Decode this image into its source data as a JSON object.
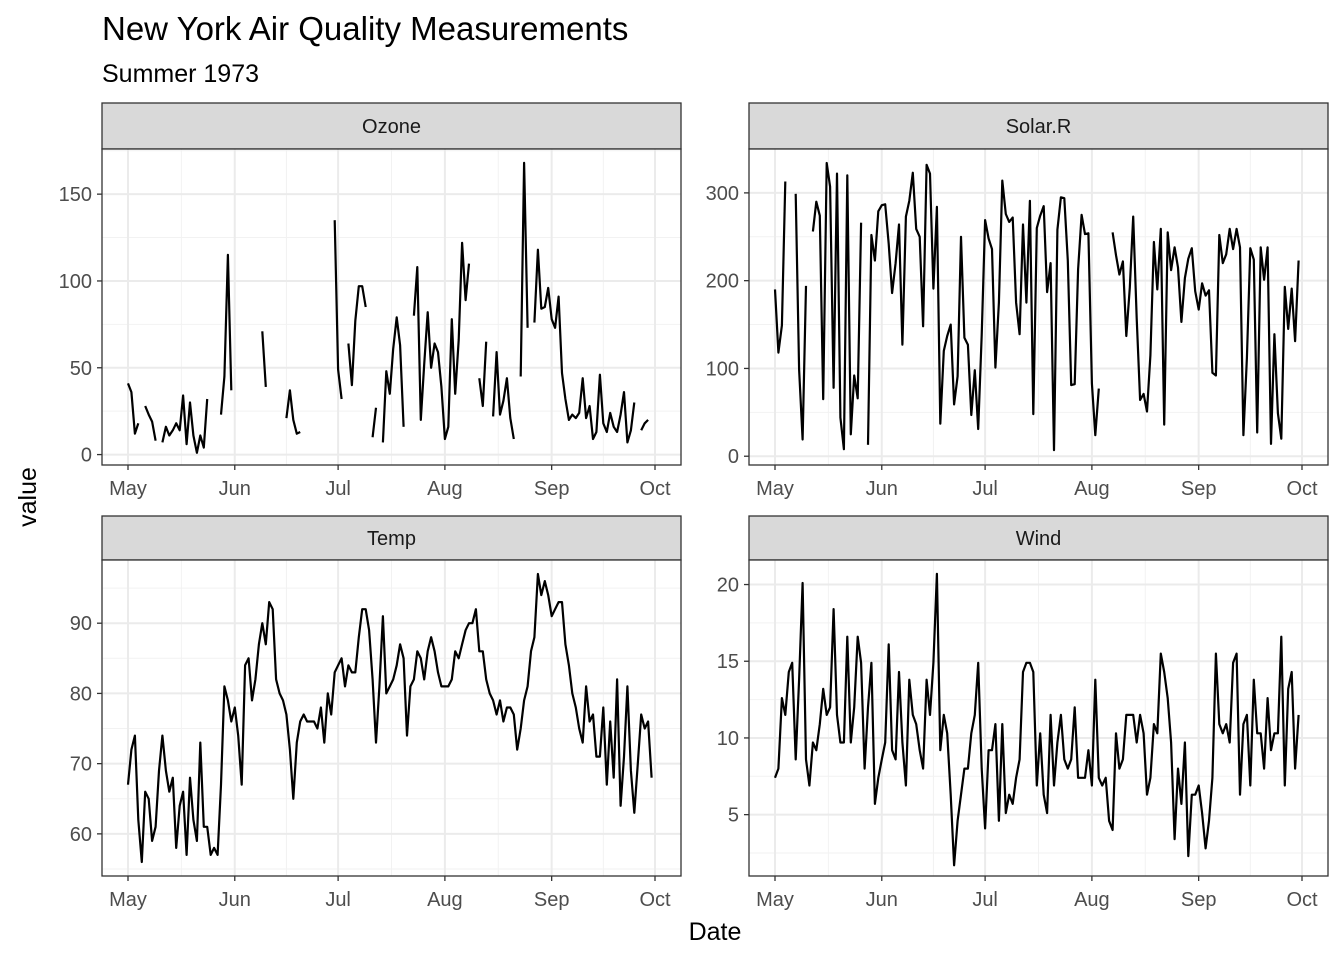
{
  "chart_data": {
    "type": "line",
    "title": "New York Air Quality Measurements",
    "subtitle": "Summer 1973",
    "xlabel": "Date",
    "ylabel": "value",
    "x_ticks": [
      "May",
      "Jun",
      "Jul",
      "Aug",
      "Sep",
      "Oct"
    ],
    "x_range": [
      "1973-05-01",
      "1973-10-01"
    ],
    "grid": true,
    "line_color": "#000000",
    "facets": [
      {
        "name": "Ozone",
        "ylim": [
          -6,
          176
        ],
        "y_ticks": [
          0,
          50,
          100,
          150
        ],
        "values": [
          41,
          36,
          12,
          18,
          null,
          28,
          23,
          19,
          8,
          null,
          7,
          16,
          11,
          14,
          18,
          14,
          34,
          6,
          30,
          11,
          1,
          11,
          4,
          32,
          null,
          null,
          null,
          23,
          45,
          115,
          37,
          null,
          null,
          null,
          null,
          null,
          null,
          29,
          null,
          71,
          39,
          null,
          null,
          23,
          null,
          null,
          21,
          37,
          20,
          12,
          13,
          null,
          null,
          null,
          null,
          null,
          null,
          null,
          null,
          null,
          135,
          49,
          32,
          null,
          64,
          40,
          77,
          97,
          97,
          85,
          null,
          10,
          27,
          null,
          7,
          48,
          35,
          61,
          79,
          63,
          16,
          null,
          null,
          80,
          108,
          20,
          52,
          82,
          50,
          64,
          59,
          39,
          9,
          16,
          78,
          35,
          66,
          122,
          89,
          110,
          null,
          null,
          44,
          28,
          65,
          null,
          22,
          59,
          23,
          31,
          44,
          21,
          9,
          null,
          45,
          168,
          73,
          null,
          76,
          118,
          84,
          85,
          96,
          78,
          73,
          91,
          47,
          32,
          20,
          23,
          21,
          24,
          44,
          21,
          28,
          9,
          13,
          46,
          18,
          13,
          24,
          16,
          13,
          23,
          36,
          7,
          14,
          30,
          null,
          14,
          18,
          20
        ]
      },
      {
        "name": "Solar.R",
        "ylim": [
          -10,
          350
        ],
        "y_ticks": [
          0,
          100,
          200,
          300
        ],
        "values": [
          190,
          118,
          149,
          313,
          null,
          null,
          299,
          99,
          19,
          194,
          null,
          256,
          290,
          274,
          65,
          334,
          307,
          78,
          322,
          44,
          8,
          320,
          25,
          92,
          66,
          266,
          null,
          13,
          252,
          223,
          279,
          286,
          287,
          242,
          186,
          220,
          264,
          127,
          273,
          291,
          323,
          259,
          250,
          148,
          332,
          322,
          191,
          284,
          37,
          120,
          137,
          150,
          59,
          91,
          250,
          135,
          127,
          47,
          98,
          31,
          138,
          269,
          248,
          236,
          101,
          175,
          314,
          276,
          267,
          272,
          175,
          139,
          264,
          175,
          291,
          48,
          260,
          274,
          285,
          187,
          220,
          7,
          258,
          295,
          294,
          223,
          81,
          82,
          213,
          275,
          253,
          254,
          83,
          24,
          77,
          null,
          null,
          null,
          255,
          229,
          207,
          222,
          137,
          192,
          273,
          157,
          64,
          71,
          51,
          115,
          244,
          190,
          259,
          36,
          255,
          212,
          238,
          215,
          153,
          203,
          225,
          237,
          188,
          167,
          197,
          183,
          189,
          95,
          92,
          252,
          220,
          230,
          259,
          236,
          259,
          238,
          24,
          112,
          237,
          224,
          27,
          238,
          201,
          238,
          14,
          139,
          49,
          20,
          193,
          145,
          191,
          131,
          223
        ]
      },
      {
        "name": "Temp",
        "ylim": [
          54,
          99
        ],
        "y_ticks": [
          60,
          70,
          80,
          90
        ],
        "values": [
          67,
          72,
          74,
          62,
          56,
          66,
          65,
          59,
          61,
          69,
          74,
          69,
          66,
          68,
          58,
          64,
          66,
          57,
          68,
          62,
          59,
          73,
          61,
          61,
          57,
          58,
          57,
          67,
          81,
          79,
          76,
          78,
          74,
          67,
          84,
          85,
          79,
          82,
          87,
          90,
          87,
          93,
          92,
          82,
          80,
          79,
          77,
          72,
          65,
          73,
          76,
          77,
          76,
          76,
          76,
          75,
          78,
          73,
          80,
          77,
          83,
          84,
          85,
          81,
          84,
          83,
          83,
          88,
          92,
          92,
          89,
          82,
          73,
          81,
          91,
          80,
          81,
          82,
          84,
          87,
          85,
          74,
          81,
          82,
          86,
          85,
          82,
          86,
          88,
          86,
          83,
          81,
          81,
          81,
          82,
          86,
          85,
          87,
          89,
          90,
          90,
          92,
          86,
          86,
          82,
          80,
          79,
          77,
          79,
          76,
          78,
          78,
          77,
          72,
          75,
          79,
          81,
          86,
          88,
          97,
          94,
          96,
          94,
          91,
          92,
          93,
          93,
          87,
          84,
          80,
          78,
          75,
          73,
          81,
          76,
          77,
          71,
          71,
          78,
          67,
          76,
          68,
          82,
          64,
          71,
          81,
          69,
          63,
          70,
          77,
          75,
          76,
          68
        ]
      },
      {
        "name": "Wind",
        "ylim": [
          1,
          21.6
        ],
        "y_ticks": [
          5,
          10,
          15,
          20
        ],
        "values": [
          7.4,
          8,
          12.6,
          11.5,
          14.3,
          14.9,
          8.6,
          13.8,
          20.1,
          8.6,
          6.9,
          9.7,
          9.2,
          10.9,
          13.2,
          11.5,
          12,
          18.4,
          11.5,
          9.7,
          9.7,
          16.6,
          9.7,
          12,
          16.6,
          14.9,
          8,
          12,
          14.9,
          5.7,
          7.4,
          8.6,
          9.7,
          16.1,
          9.2,
          8.6,
          14.3,
          9.7,
          6.9,
          13.8,
          11.5,
          10.9,
          9.2,
          8,
          13.8,
          11.5,
          14.9,
          20.7,
          9.2,
          11.5,
          10.3,
          6.3,
          1.7,
          4.6,
          6.3,
          8,
          8,
          10.3,
          11.5,
          14.9,
          8,
          4.1,
          9.2,
          9.2,
          10.9,
          4.6,
          10.9,
          5.1,
          6.3,
          5.7,
          7.4,
          8.6,
          14.3,
          14.9,
          14.9,
          14.3,
          6.9,
          10.3,
          6.3,
          5.1,
          11.5,
          6.9,
          9.7,
          11.5,
          8.6,
          8,
          8.6,
          12,
          7.4,
          7.4,
          7.4,
          9.2,
          6.9,
          13.8,
          7.4,
          6.9,
          7.4,
          4.6,
          4,
          10.3,
          8,
          8.6,
          11.5,
          11.5,
          11.5,
          9.7,
          11.5,
          10.3,
          6.3,
          7.4,
          10.9,
          10.3,
          15.5,
          14.3,
          12.6,
          9.7,
          3.4,
          8,
          5.7,
          9.7,
          2.3,
          6.3,
          6.3,
          6.9,
          5.1,
          2.8,
          4.6,
          7.4,
          15.5,
          10.9,
          10.3,
          10.9,
          9.7,
          14.9,
          15.5,
          6.3,
          10.9,
          11.5,
          6.9,
          13.8,
          10.3,
          10.3,
          8,
          12.6,
          9.2,
          10.3,
          10.3,
          16.6,
          6.9,
          13.2,
          14.3,
          8,
          11.5
        ]
      }
    ]
  }
}
